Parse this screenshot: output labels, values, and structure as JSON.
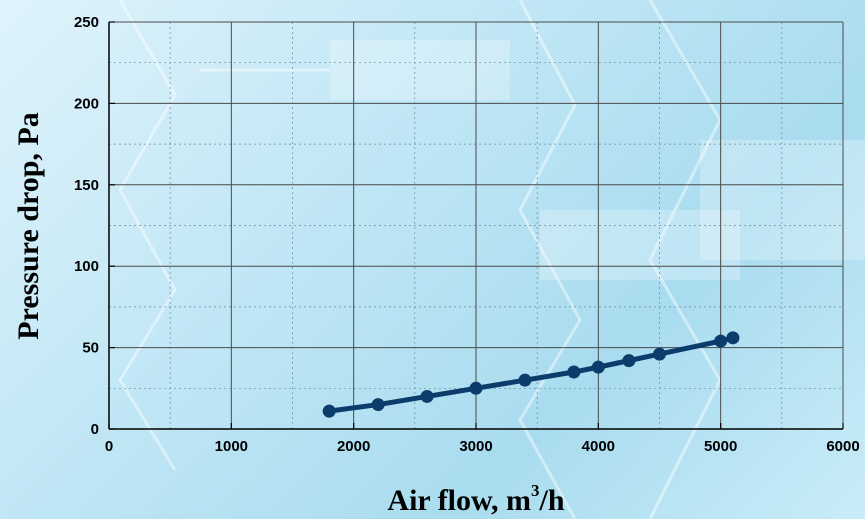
{
  "chart_data": {
    "type": "line",
    "title": "",
    "xlabel": "Air flow, m",
    "xlabel_sup": "3",
    "xlabel_suffix": "/h",
    "ylabel": "Pressure drop, Pa",
    "xlim": [
      0,
      6000
    ],
    "ylim": [
      0,
      250
    ],
    "xticks": [
      0,
      1000,
      2000,
      3000,
      4000,
      5000,
      6000
    ],
    "yticks": [
      0,
      50,
      100,
      150,
      200,
      250
    ],
    "grid": true,
    "series": [
      {
        "color": "#0b3c6b",
        "x": [
          1800,
          2200,
          2600,
          3000,
          3400,
          3800,
          4000,
          4250,
          4500,
          5000,
          5100
        ],
        "y": [
          11,
          15,
          20,
          25,
          30,
          35,
          38,
          42,
          46,
          54,
          56
        ]
      }
    ]
  }
}
